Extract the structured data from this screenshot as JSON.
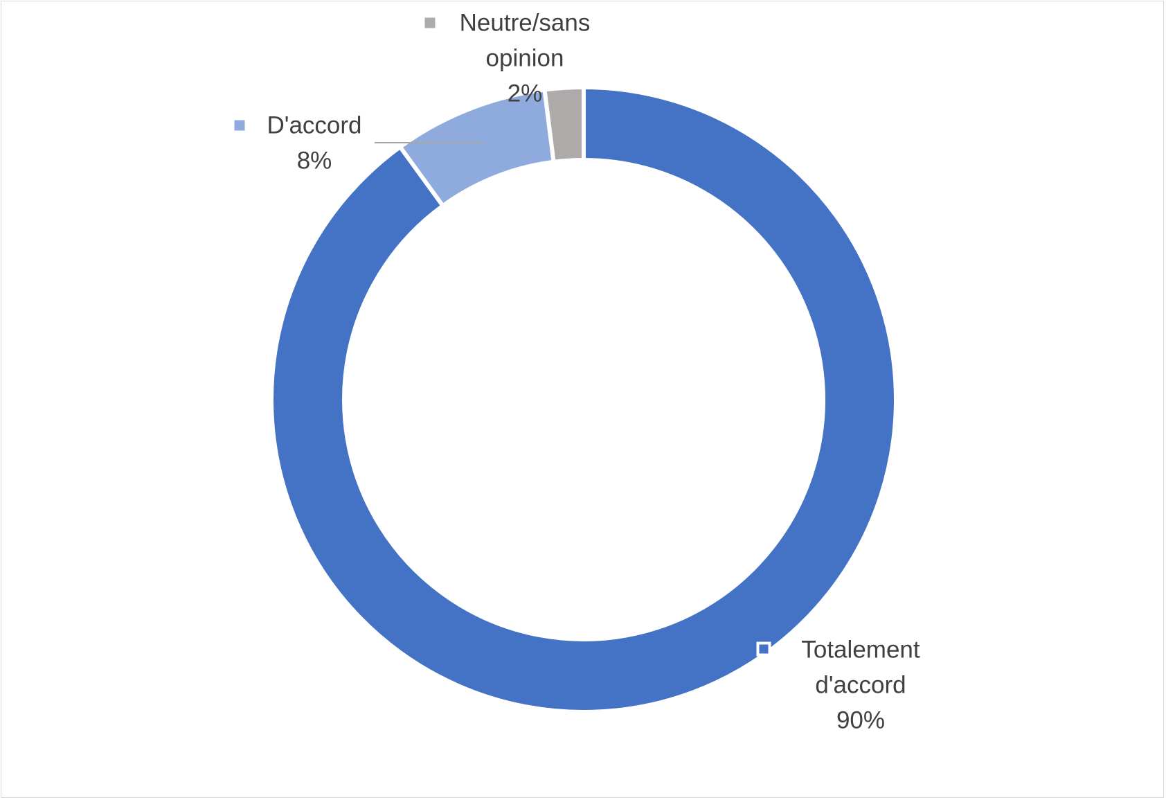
{
  "chart_data": {
    "type": "pie",
    "variant": "doughnut",
    "title": "",
    "slices": [
      {
        "label": "Totalement d'accord",
        "label_lines": [
          "Totalement",
          "d'accord"
        ],
        "value": 90,
        "display": "90%",
        "color": "#4472C4"
      },
      {
        "label": "D'accord",
        "label_lines": [
          "D'accord"
        ],
        "value": 8,
        "display": "8%",
        "color": "#8FAADC"
      },
      {
        "label": "Neutre/sans opinion",
        "label_lines": [
          "Neutre/sans",
          "opinion"
        ],
        "value": 2,
        "display": "2%",
        "color": "#AEAAAA"
      }
    ],
    "legend": "none",
    "data_labels": "category-and-percent"
  }
}
